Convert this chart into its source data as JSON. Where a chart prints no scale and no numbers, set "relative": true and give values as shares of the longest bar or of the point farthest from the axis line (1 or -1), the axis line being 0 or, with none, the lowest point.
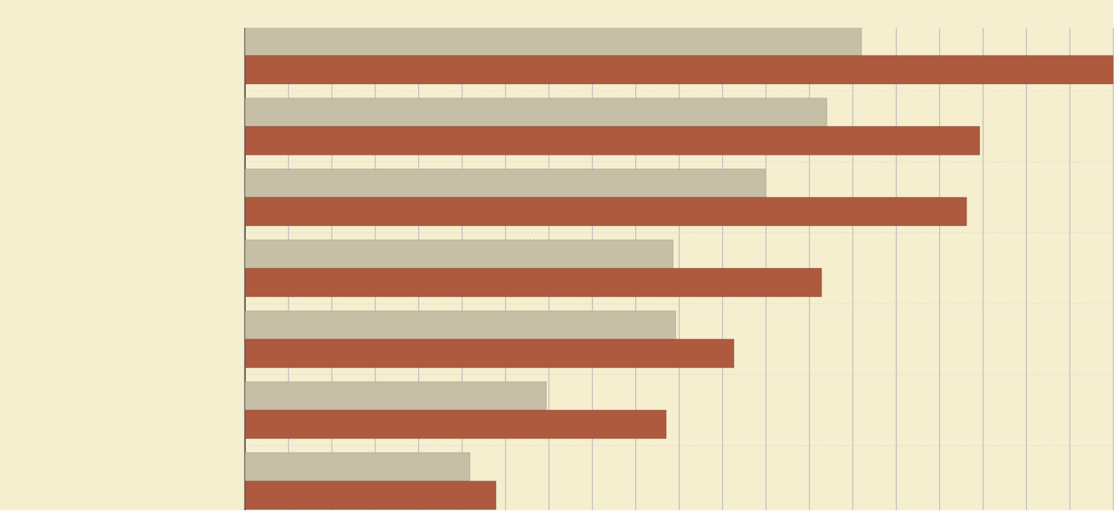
{
  "chart_data": {
    "type": "bar",
    "orientation": "horizontal",
    "relative": true,
    "tick_labels": false,
    "grid": true,
    "categories": [
      null,
      null,
      null,
      null,
      null,
      null,
      null
    ],
    "series": [
      {
        "color": "#c6bfa6",
        "values": [
          0.71,
          0.67,
          0.599,
          0.493,
          0.496,
          0.347,
          0.259
        ]
      },
      {
        "color": "#ad5a3e",
        "values": [
          1.0,
          0.846,
          0.831,
          0.664,
          0.563,
          0.485,
          0.289
        ]
      }
    ]
  }
}
